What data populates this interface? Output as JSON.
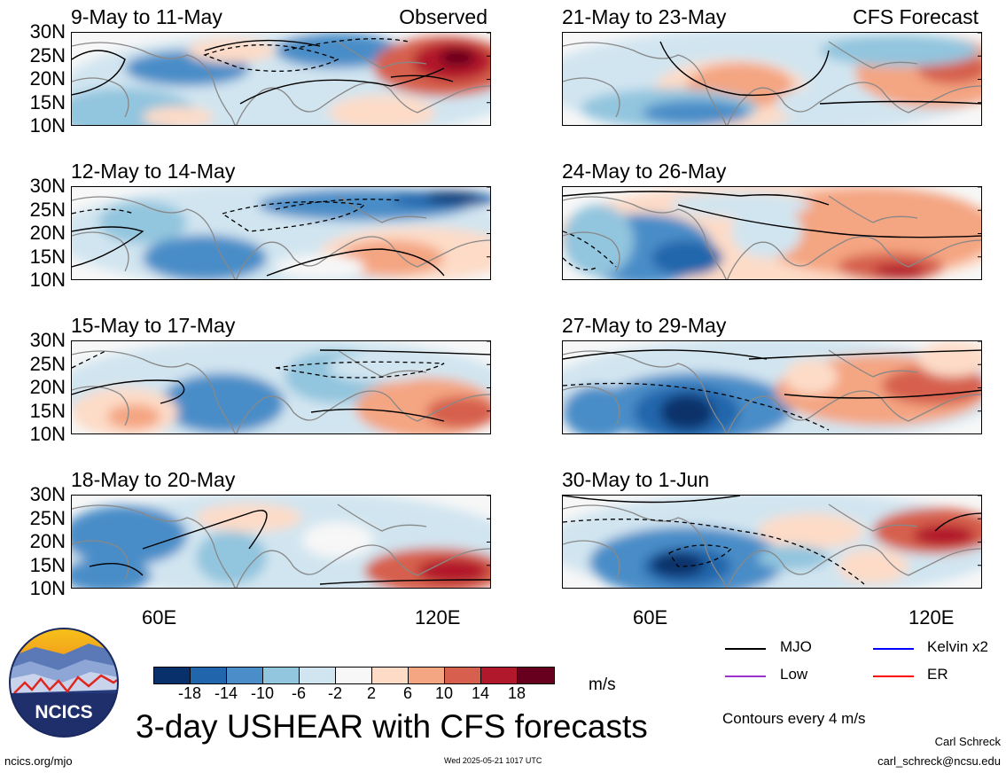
{
  "panels": [
    {
      "title": "9-May to 11-May",
      "tag": "Observed"
    },
    {
      "title": "21-May to 23-May",
      "tag": "CFS Forecast"
    },
    {
      "title": "12-May to 14-May",
      "tag": ""
    },
    {
      "title": "24-May to 26-May",
      "tag": ""
    },
    {
      "title": "15-May to 17-May",
      "tag": ""
    },
    {
      "title": "27-May to 29-May",
      "tag": ""
    },
    {
      "title": "18-May to 20-May",
      "tag": ""
    },
    {
      "title": "30-May to 1-Jun",
      "tag": ""
    }
  ],
  "lat_labels": [
    "30N",
    "25N",
    "20N",
    "15N",
    "10N"
  ],
  "lon_labels": [
    "60E",
    "120E"
  ],
  "colorbar": {
    "colors": [
      "#08306b",
      "#2166ac",
      "#4a8dc8",
      "#92c5de",
      "#d1e5f0",
      "#f7f7f7",
      "#fddbc7",
      "#f4a582",
      "#d6604d",
      "#b2182b",
      "#67001f"
    ],
    "labels": [
      "-18",
      "-14",
      "-10",
      "-6",
      "-2",
      "2",
      "6",
      "10",
      "14",
      "18"
    ],
    "units": "m/s"
  },
  "legend": [
    {
      "label": "MJO",
      "color": "#000000"
    },
    {
      "label": "Kelvin x2",
      "color": "#0000ff"
    },
    {
      "label": "Low",
      "color": "#9a32cd"
    },
    {
      "label": "ER",
      "color": "#ff0000"
    }
  ],
  "contours_note": "Contours every 4 m/s",
  "main_title": "3-day USHEAR with CFS forecasts",
  "logo_text": "NCICS",
  "footer": {
    "url": "ncics.org/mjo",
    "timestamp": "Wed 2025-05-21 1017 UTC",
    "author": "Carl Schreck",
    "email": "carl_schreck@ncsu.edu"
  }
}
